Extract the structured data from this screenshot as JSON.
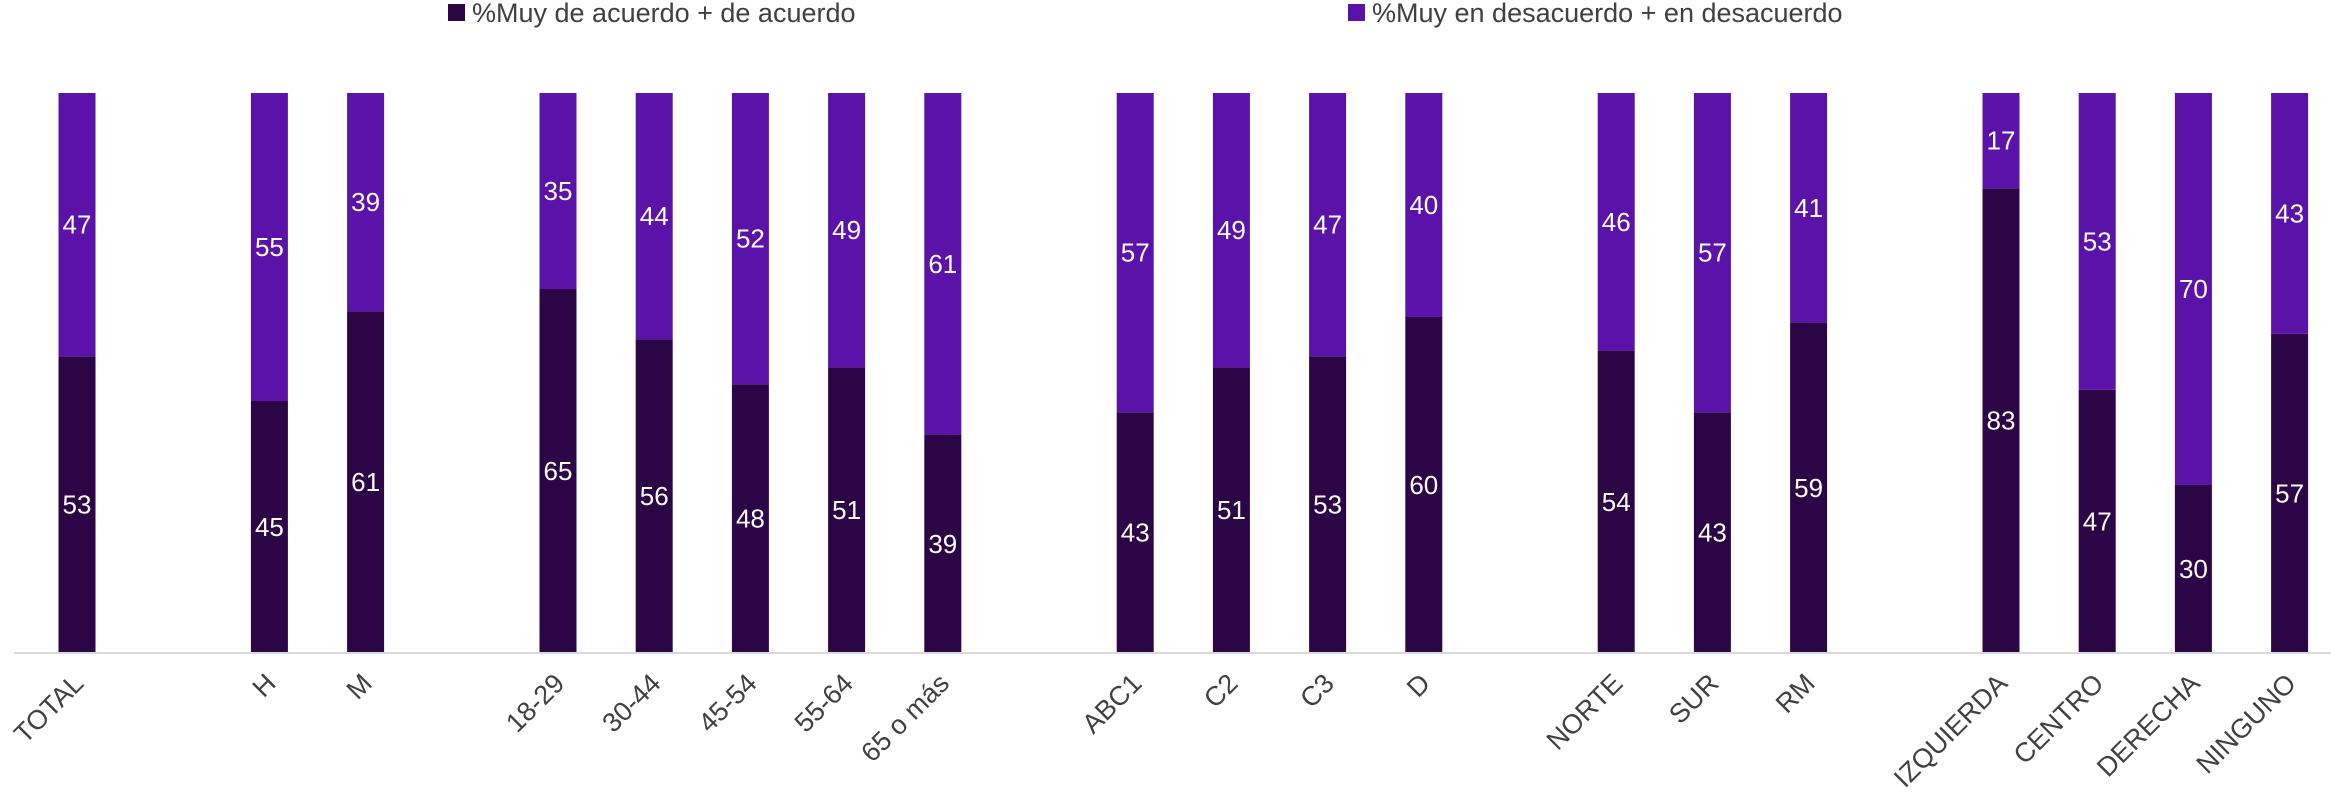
{
  "chart_data": {
    "type": "bar",
    "stacked": true,
    "percent_stacked": true,
    "categories": [
      "TOTAL",
      "H",
      "M",
      "18-29",
      "30-44",
      "45-54",
      "55-64",
      "65 o más",
      "ABC1",
      "C2",
      "C3",
      "D",
      "NORTE",
      "SUR",
      "RM",
      "IZQUIERDA",
      "CENTRO",
      "DERECHA",
      "NINGUNO"
    ],
    "groups": [
      [
        "TOTAL"
      ],
      [
        "H",
        "M"
      ],
      [
        "18-29",
        "30-44",
        "45-54",
        "55-64",
        "65 o más"
      ],
      [
        "ABC1",
        "C2",
        "C3",
        "D"
      ],
      [
        "NORTE",
        "SUR",
        "RM"
      ],
      [
        "IZQUIERDA",
        "CENTRO",
        "DERECHA",
        "NINGUNO"
      ]
    ],
    "series": [
      {
        "name": "%Muy de acuerdo + de acuerdo",
        "color": "#2b0545",
        "values": [
          53,
          45,
          61,
          65,
          56,
          48,
          51,
          39,
          43,
          51,
          53,
          60,
          54,
          43,
          59,
          83,
          47,
          30,
          57
        ]
      },
      {
        "name": "%Muy en desacuerdo + en desacuerdo",
        "color": "#5b12a8",
        "values": [
          47,
          55,
          39,
          35,
          44,
          52,
          49,
          61,
          57,
          49,
          47,
          40,
          46,
          57,
          41,
          17,
          53,
          70,
          43
        ]
      }
    ],
    "legend_position": "top",
    "grid": false,
    "axis_color": "#d9d9d9",
    "label_color": "#ffffff",
    "tick_label_color": "#404040"
  }
}
